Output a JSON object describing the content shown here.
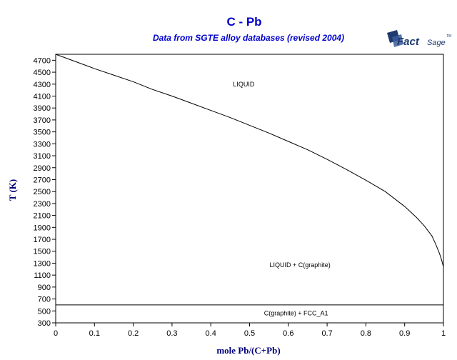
{
  "chart_data": {
    "type": "line",
    "title": "C - Pb",
    "subtitle": "Data from SGTE alloy databases (revised 2004)",
    "xlabel": "mole Pb/(C+Pb)",
    "ylabel": "T (K)",
    "xlim": [
      0,
      1
    ],
    "ylim": [
      300,
      4800
    ],
    "x_ticks": [
      0,
      0.1,
      0.2,
      0.3,
      0.4,
      0.5,
      0.6,
      0.7,
      0.8,
      0.9,
      1
    ],
    "x_tick_labels": [
      "0",
      "0.1",
      "0.2",
      "0.3",
      "0.4",
      "0.5",
      "0.6",
      "0.7",
      "0.8",
      "0.9",
      "1"
    ],
    "y_ticks": [
      300,
      500,
      700,
      900,
      1100,
      1300,
      1500,
      1700,
      1900,
      2100,
      2300,
      2500,
      2700,
      2900,
      3100,
      3300,
      3500,
      3700,
      3900,
      4100,
      4300,
      4500,
      4700
    ],
    "y_tick_labels": [
      "300",
      "500",
      "700",
      "900",
      "1100",
      "1300",
      "1500",
      "1700",
      "1900",
      "2100",
      "2300",
      "2500",
      "2700",
      "2900",
      "3100",
      "3300",
      "3500",
      "3700",
      "3900",
      "4100",
      "4300",
      "4500",
      "4700"
    ],
    "grid": false,
    "series": [
      {
        "x": [
          0,
          0.05,
          0.1,
          0.15,
          0.2,
          0.25,
          0.3,
          0.35,
          0.4,
          0.45,
          0.5,
          0.55,
          0.6,
          0.65,
          0.7,
          0.75,
          0.8,
          0.85,
          0.9,
          0.93,
          0.95,
          0.97,
          0.98,
          0.99,
          0.995,
          1.0
        ],
        "y": [
          4800,
          4680,
          4560,
          4450,
          4340,
          4210,
          4100,
          3980,
          3860,
          3740,
          3610,
          3480,
          3340,
          3200,
          3040,
          2870,
          2690,
          2500,
          2250,
          2070,
          1930,
          1760,
          1620,
          1460,
          1360,
          1240
        ]
      },
      {
        "x": [
          0,
          1
        ],
        "y": [
          600.6,
          600.6
        ]
      }
    ],
    "annotations": [
      {
        "text": "LIQUID",
        "x": 0.485,
        "y": 4300
      },
      {
        "text": "LIQUID + C(graphite)",
        "x": 0.63,
        "y": 1270
      },
      {
        "text": "C(graphite) + FCC_A1",
        "x": 0.62,
        "y": 460
      }
    ]
  },
  "logo": {
    "text_fact": "Fact",
    "text_sage": "Sage",
    "tm": "TM"
  }
}
